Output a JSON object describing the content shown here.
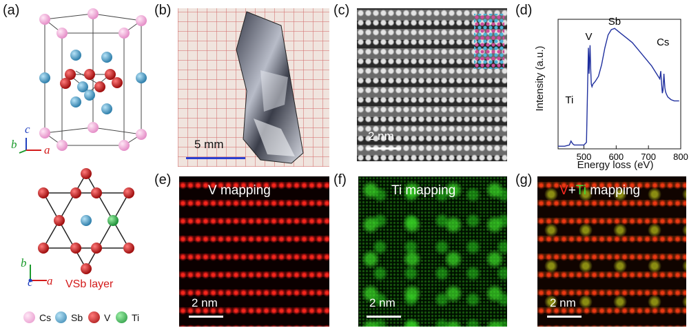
{
  "panels": {
    "a": {
      "label": "(a)",
      "layer_caption": "VSb layer",
      "axes_top": {
        "c": "c",
        "b": "b",
        "a": "a"
      },
      "axes_bottom": {
        "b": "b",
        "c": "c",
        "a": "a"
      },
      "legend": [
        {
          "name": "Cs",
          "color": "#f2a7d8"
        },
        {
          "name": "Sb",
          "color": "#4a9dc6"
        },
        {
          "name": "V",
          "color": "#c01818"
        },
        {
          "name": "Ti",
          "color": "#2fb24c"
        }
      ]
    },
    "b": {
      "label": "(b)",
      "scale": "5 mm"
    },
    "c": {
      "label": "(c)",
      "scale": "2 nm"
    },
    "d": {
      "label": "(d)"
    },
    "e": {
      "label": "(e)",
      "title": "V  mapping",
      "scale": "2 nm"
    },
    "f": {
      "label": "(f)",
      "title": "Ti  mapping",
      "scale": "2 nm"
    },
    "g": {
      "label": "(g)",
      "title_v": "V",
      "title_plus": "+",
      "title_ti": "Ti",
      "title_rest": "  mapping",
      "scale": "2 nm"
    }
  },
  "chart_data": {
    "type": "line",
    "xlabel": "Energy loss (eV)",
    "ylabel": "Intensity (a.u.)",
    "xlim": [
      420,
      800
    ],
    "xticks": [
      500,
      600,
      700,
      800
    ],
    "line_color": "#1f2f9e",
    "annotations": [
      {
        "text": "Ti",
        "x": 455
      },
      {
        "text": "V",
        "x": 515
      },
      {
        "text": "Sb",
        "x": 595
      },
      {
        "text": "Cs",
        "x": 745
      }
    ],
    "series": [
      {
        "x": [
          420,
          440,
          455,
          460,
          465,
          470,
          480,
          500,
          508,
          512,
          514,
          516,
          519,
          521,
          523,
          525,
          528,
          535,
          545,
          555,
          565,
          575,
          585,
          595,
          605,
          615,
          630,
          650,
          670,
          690,
          710,
          725,
          735,
          738,
          741,
          743,
          745,
          748,
          751,
          753,
          756,
          760,
          770,
          780,
          795
        ],
        "values": [
          0.02,
          0.02,
          0.03,
          0.06,
          0.04,
          0.03,
          0.03,
          0.03,
          0.05,
          0.55,
          0.78,
          0.58,
          0.8,
          0.62,
          0.5,
          0.48,
          0.5,
          0.52,
          0.56,
          0.65,
          0.78,
          0.88,
          0.92,
          0.93,
          0.91,
          0.89,
          0.86,
          0.82,
          0.76,
          0.7,
          0.64,
          0.58,
          0.54,
          0.6,
          0.49,
          0.43,
          0.45,
          0.58,
          0.47,
          0.44,
          0.42,
          0.4,
          0.38,
          0.37,
          0.37
        ]
      }
    ]
  }
}
